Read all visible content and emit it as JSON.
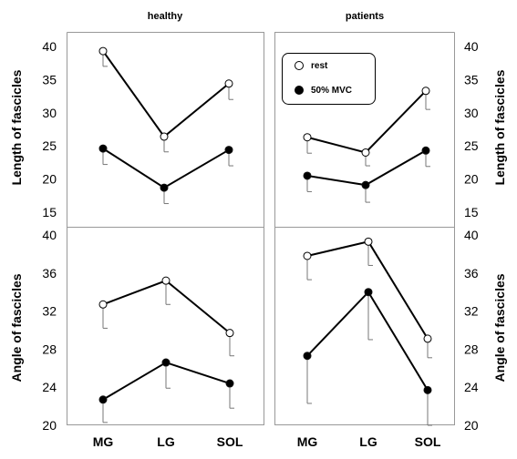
{
  "chart_data": [
    {
      "type": "line",
      "panel": "top-left",
      "title": "healthy",
      "ylabel": "Length of fascicles",
      "ylim": [
        15,
        40
      ],
      "yticks": [
        "40",
        "35",
        "30",
        "25",
        "20",
        "15"
      ],
      "categories": [
        "MG",
        "LG",
        "SOL"
      ],
      "series": [
        {
          "marker": "open",
          "values": [
            39.3,
            26.4,
            34.4
          ],
          "err_low": [
            2.3,
            2.3,
            2.4
          ],
          "err_high": [
            0,
            0,
            0
          ]
        },
        {
          "marker": "filled",
          "values": [
            24.6,
            18.7,
            24.4
          ],
          "err_low": [
            2.4,
            2.4,
            2.4
          ],
          "err_high": [
            0,
            0,
            0
          ]
        }
      ]
    },
    {
      "type": "line",
      "panel": "top-right",
      "title": "patients",
      "ylabel": "Length of fascicles",
      "ylim": [
        15,
        40
      ],
      "yticks": [
        "40",
        "35",
        "30",
        "25",
        "20",
        "15"
      ],
      "categories": [
        "MG",
        "LG",
        "SOL"
      ],
      "series": [
        {
          "name": "rest",
          "marker": "open",
          "values": [
            26.3,
            24.0,
            33.3
          ],
          "err_low": [
            2.4,
            2.0,
            2.8
          ],
          "err_high": [
            0,
            0,
            0
          ]
        },
        {
          "name": "50% MVC",
          "marker": "filled",
          "values": [
            20.5,
            19.1,
            24.3
          ],
          "err_low": [
            2.4,
            2.6,
            2.4
          ],
          "err_high": [
            0,
            0,
            0
          ]
        }
      ]
    },
    {
      "type": "line",
      "panel": "bottom-left",
      "ylabel": "Angle of fascicles",
      "ylim": [
        20,
        40
      ],
      "yticks": [
        "40",
        "36",
        "32",
        "28",
        "24",
        "20"
      ],
      "categories": [
        "MG",
        "LG",
        "SOL"
      ],
      "series": [
        {
          "marker": "open",
          "values": [
            32.7,
            35.2,
            29.7
          ],
          "err_low": [
            2.5,
            2.5,
            2.4
          ],
          "err_high": [
            0,
            0,
            0
          ]
        },
        {
          "marker": "filled",
          "values": [
            22.7,
            26.6,
            24.4
          ],
          "err_low": [
            2.4,
            2.7,
            2.6
          ],
          "err_high": [
            0,
            0,
            0
          ]
        }
      ]
    },
    {
      "type": "line",
      "panel": "bottom-right",
      "ylabel": "Angle of fascicles",
      "ylim": [
        20,
        40
      ],
      "yticks": [
        "40",
        "36",
        "32",
        "28",
        "24",
        "20"
      ],
      "categories": [
        "MG",
        "LG",
        "SOL"
      ],
      "series": [
        {
          "marker": "open",
          "values": [
            37.8,
            39.3,
            29.1
          ],
          "err_low": [
            2.5,
            2.5,
            2.0
          ],
          "err_high": [
            0,
            0,
            0
          ]
        },
        {
          "marker": "filled",
          "values": [
            27.3,
            34.0,
            23.7
          ],
          "err_low": [
            5.0,
            5.0,
            3.7
          ],
          "err_high": [
            0,
            0,
            0
          ]
        }
      ]
    }
  ],
  "legend": {
    "items": [
      {
        "label": "rest",
        "marker": "open"
      },
      {
        "label": "50% MVC",
        "marker": "filled"
      }
    ]
  }
}
